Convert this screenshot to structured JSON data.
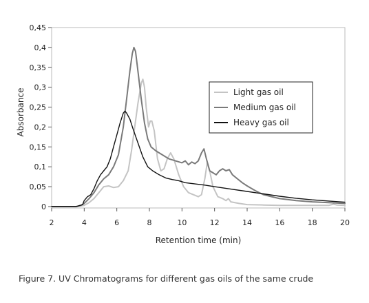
{
  "chart_data": {
    "type": "line",
    "xlabel": "Retention time (min)",
    "ylabel": "Absorbance",
    "xlim": [
      2,
      20
    ],
    "ylim": [
      0,
      0.45
    ],
    "x_ticks": [
      2,
      4,
      6,
      8,
      10,
      12,
      14,
      16,
      18,
      20
    ],
    "y_ticks": [
      0,
      0.05,
      0.1,
      0.15,
      0.2,
      0.25,
      0.3,
      0.35,
      0.4,
      0.45
    ],
    "x_tick_labels": [
      "2",
      "4",
      "6",
      "8",
      "10",
      "12",
      "14",
      "16",
      "18",
      "20"
    ],
    "y_tick_labels": [
      "0",
      "0,05",
      "0,1",
      "0,15",
      "0,2",
      "0,25",
      "0,3",
      "0,35",
      "0,4",
      "0,45"
    ],
    "grid": false,
    "legend_position": "right",
    "series": [
      {
        "name": "Light gas oil",
        "color": "#c4c4c4",
        "points": [
          [
            2,
            0
          ],
          [
            3.5,
            0
          ],
          [
            4,
            0.003
          ],
          [
            4.3,
            0.01
          ],
          [
            4.6,
            0.02
          ],
          [
            4.9,
            0.035
          ],
          [
            5.2,
            0.05
          ],
          [
            5.5,
            0.052
          ],
          [
            5.8,
            0.048
          ],
          [
            6.1,
            0.05
          ],
          [
            6.4,
            0.065
          ],
          [
            6.7,
            0.09
          ],
          [
            6.9,
            0.14
          ],
          [
            7.1,
            0.2
          ],
          [
            7.3,
            0.26
          ],
          [
            7.5,
            0.31
          ],
          [
            7.6,
            0.32
          ],
          [
            7.7,
            0.3
          ],
          [
            7.8,
            0.25
          ],
          [
            7.95,
            0.2
          ],
          [
            8.05,
            0.215
          ],
          [
            8.15,
            0.215
          ],
          [
            8.3,
            0.19
          ],
          [
            8.5,
            0.12
          ],
          [
            8.7,
            0.09
          ],
          [
            8.9,
            0.095
          ],
          [
            9.1,
            0.12
          ],
          [
            9.3,
            0.135
          ],
          [
            9.5,
            0.12
          ],
          [
            9.8,
            0.08
          ],
          [
            10.1,
            0.05
          ],
          [
            10.4,
            0.035
          ],
          [
            10.7,
            0.03
          ],
          [
            11,
            0.025
          ],
          [
            11.2,
            0.03
          ],
          [
            11.4,
            0.07
          ],
          [
            11.55,
            0.11
          ],
          [
            11.7,
            0.09
          ],
          [
            11.9,
            0.05
          ],
          [
            12.2,
            0.025
          ],
          [
            12.5,
            0.02
          ],
          [
            12.7,
            0.015
          ],
          [
            12.85,
            0.02
          ],
          [
            13,
            0.012
          ],
          [
            13.5,
            0.008
          ],
          [
            14,
            0.005
          ],
          [
            15,
            0.004
          ],
          [
            16,
            0.003
          ],
          [
            17,
            0.003
          ],
          [
            18,
            0.003
          ],
          [
            19,
            0.003
          ],
          [
            19.3,
            0.006
          ],
          [
            19.5,
            0.004
          ],
          [
            20,
            0.003
          ]
        ]
      },
      {
        "name": "Medium gas oil",
        "color": "#7a7a7a",
        "points": [
          [
            2,
            0
          ],
          [
            3.5,
            0
          ],
          [
            3.8,
            0.003
          ],
          [
            4,
            0.008
          ],
          [
            4.3,
            0.02
          ],
          [
            4.6,
            0.035
          ],
          [
            4.9,
            0.055
          ],
          [
            5.2,
            0.07
          ],
          [
            5.5,
            0.08
          ],
          [
            5.8,
            0.1
          ],
          [
            6.1,
            0.13
          ],
          [
            6.4,
            0.2
          ],
          [
            6.6,
            0.27
          ],
          [
            6.8,
            0.34
          ],
          [
            6.95,
            0.385
          ],
          [
            7.05,
            0.4
          ],
          [
            7.15,
            0.39
          ],
          [
            7.3,
            0.34
          ],
          [
            7.5,
            0.27
          ],
          [
            7.7,
            0.21
          ],
          [
            7.9,
            0.17
          ],
          [
            8.1,
            0.15
          ],
          [
            8.4,
            0.14
          ],
          [
            8.8,
            0.13
          ],
          [
            9.2,
            0.12
          ],
          [
            9.6,
            0.115
          ],
          [
            10,
            0.11
          ],
          [
            10.2,
            0.115
          ],
          [
            10.4,
            0.105
          ],
          [
            10.6,
            0.112
          ],
          [
            10.8,
            0.108
          ],
          [
            11,
            0.115
          ],
          [
            11.2,
            0.135
          ],
          [
            11.35,
            0.145
          ],
          [
            11.5,
            0.12
          ],
          [
            11.7,
            0.09
          ],
          [
            11.9,
            0.085
          ],
          [
            12.1,
            0.08
          ],
          [
            12.3,
            0.09
          ],
          [
            12.5,
            0.095
          ],
          [
            12.7,
            0.09
          ],
          [
            12.9,
            0.093
          ],
          [
            13.1,
            0.08
          ],
          [
            13.4,
            0.07
          ],
          [
            13.7,
            0.06
          ],
          [
            14,
            0.052
          ],
          [
            14.5,
            0.04
          ],
          [
            15,
            0.03
          ],
          [
            15.5,
            0.025
          ],
          [
            16,
            0.02
          ],
          [
            17,
            0.015
          ],
          [
            18,
            0.012
          ],
          [
            19,
            0.01
          ],
          [
            20,
            0.008
          ]
        ]
      },
      {
        "name": "Heavy gas oil",
        "color": "#111111",
        "points": [
          [
            2,
            0
          ],
          [
            3.5,
            0
          ],
          [
            3.9,
            0.005
          ],
          [
            4,
            0.015
          ],
          [
            4.2,
            0.025
          ],
          [
            4.4,
            0.03
          ],
          [
            4.6,
            0.045
          ],
          [
            4.8,
            0.065
          ],
          [
            5,
            0.08
          ],
          [
            5.2,
            0.09
          ],
          [
            5.4,
            0.1
          ],
          [
            5.6,
            0.12
          ],
          [
            5.8,
            0.15
          ],
          [
            6,
            0.18
          ],
          [
            6.2,
            0.21
          ],
          [
            6.4,
            0.235
          ],
          [
            6.5,
            0.24
          ],
          [
            6.6,
            0.235
          ],
          [
            6.8,
            0.22
          ],
          [
            7,
            0.195
          ],
          [
            7.3,
            0.16
          ],
          [
            7.6,
            0.125
          ],
          [
            7.9,
            0.1
          ],
          [
            8.2,
            0.09
          ],
          [
            8.6,
            0.08
          ],
          [
            9,
            0.072
          ],
          [
            9.4,
            0.068
          ],
          [
            9.8,
            0.065
          ],
          [
            10.2,
            0.06
          ],
          [
            10.8,
            0.057
          ],
          [
            11.4,
            0.054
          ],
          [
            12,
            0.05
          ],
          [
            13,
            0.044
          ],
          [
            14,
            0.038
          ],
          [
            15,
            0.032
          ],
          [
            16,
            0.026
          ],
          [
            17,
            0.021
          ],
          [
            18,
            0.017
          ],
          [
            19,
            0.014
          ],
          [
            20,
            0.011
          ]
        ]
      }
    ]
  },
  "caption": "Figure 7. UV Chromatograms for different gas oils of the same crude"
}
